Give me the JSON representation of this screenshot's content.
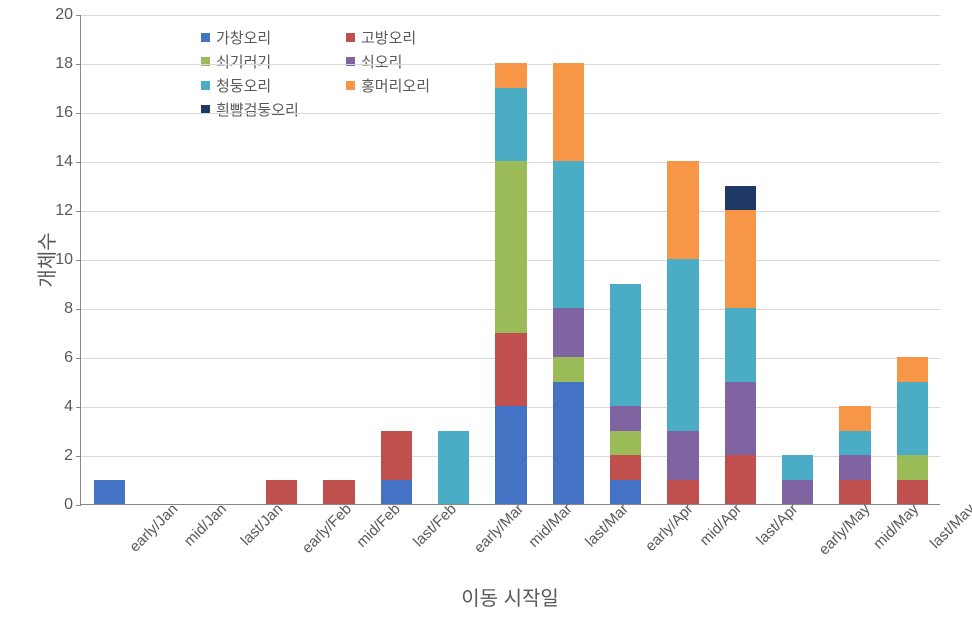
{
  "chart": {
    "type": "stacked-bar",
    "background_color": "#ffffff",
    "grid_color": "#d9d9d9",
    "axis_color": "#888888",
    "text_color": "#595959",
    "y_axis": {
      "title": "개체수",
      "min": 0,
      "max": 20,
      "tick_step": 2,
      "ticks": [
        0,
        2,
        4,
        6,
        8,
        10,
        12,
        14,
        16,
        18,
        20
      ],
      "title_fontsize": 20,
      "tick_fontsize": 16
    },
    "x_axis": {
      "title": "이동 시작일",
      "title_fontsize": 20,
      "tick_fontsize": 15,
      "tick_rotation": -45
    },
    "bar_width_ratio": 0.55,
    "categories": [
      "early/Jan",
      "mid/Jan",
      "last/Jan",
      "early/Feb",
      "mid/Feb",
      "last/Feb",
      "early/Mar",
      "mid/Mar",
      "last/Mar",
      "early/Apr",
      "mid/Apr",
      "last/Apr",
      "early/May",
      "mid/May",
      "last/May"
    ],
    "series": [
      {
        "name": "가창오리",
        "color": "#4472c4"
      },
      {
        "name": "고방오리",
        "color": "#c0504d"
      },
      {
        "name": "쇠기러기",
        "color": "#9bbb59"
      },
      {
        "name": "쇠오리",
        "color": "#8064a2"
      },
      {
        "name": "청둥오리",
        "color": "#4bacc6"
      },
      {
        "name": "홍머리오리",
        "color": "#f79646"
      },
      {
        "name": "흰뺨검둥오리",
        "color": "#1f3864"
      }
    ],
    "data": {
      "early/Jan": {
        "가창오리": 1
      },
      "mid/Jan": {},
      "last/Jan": {},
      "early/Feb": {
        "고방오리": 1
      },
      "mid/Feb": {
        "고방오리": 1
      },
      "last/Feb": {
        "가창오리": 1,
        "고방오리": 2
      },
      "early/Mar": {
        "청둥오리": 3
      },
      "mid/Mar": {
        "가창오리": 4,
        "고방오리": 3,
        "쇠기러기": 7,
        "청둥오리": 3,
        "홍머리오리": 1
      },
      "last/Mar": {
        "가창오리": 5,
        "쇠기러기": 1,
        "쇠오리": 2,
        "청둥오리": 6,
        "홍머리오리": 4
      },
      "early/Apr": {
        "가창오리": 1,
        "고방오리": 1,
        "쇠기러기": 1,
        "쇠오리": 1,
        "청둥오리": 5
      },
      "mid/Apr": {
        "고방오리": 1,
        "쇠오리": 2,
        "청둥오리": 7,
        "홍머리오리": 4
      },
      "last/Apr": {
        "고방오리": 2,
        "쇠오리": 3,
        "청둥오리": 3,
        "홍머리오리": 4,
        "흰뺨검둥오리": 1
      },
      "early/May": {
        "쇠오리": 1,
        "청둥오리": 1
      },
      "mid/May": {
        "고방오리": 1,
        "쇠오리": 1,
        "청둥오리": 1,
        "홍머리오리": 1
      },
      "last/May": {
        "고방오리": 1,
        "쇠기러기": 1,
        "청둥오리": 3,
        "홍머리오리": 1
      }
    }
  }
}
